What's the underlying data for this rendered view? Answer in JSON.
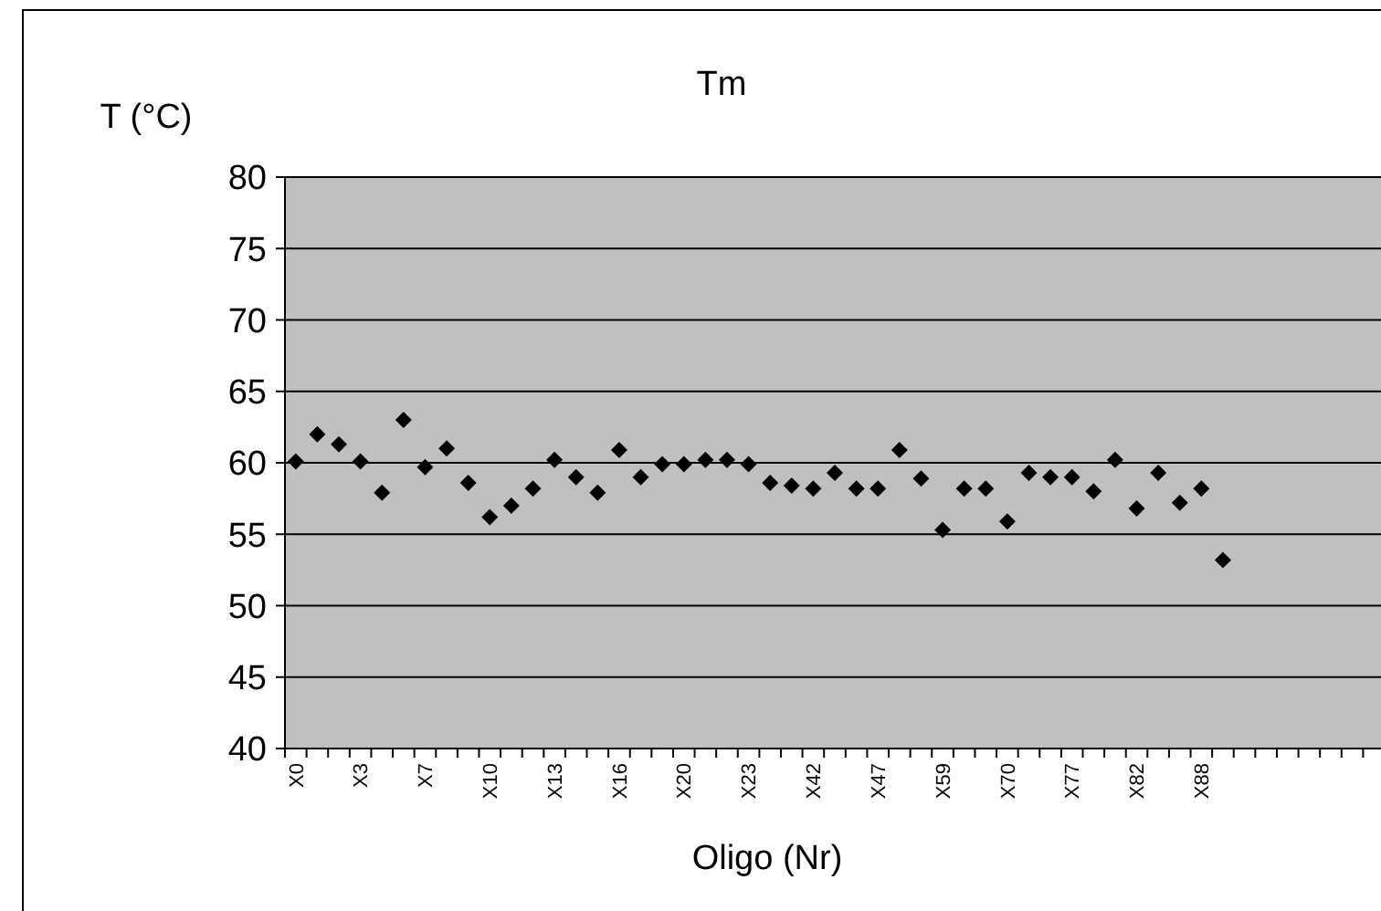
{
  "chart_data": {
    "type": "scatter",
    "title": "Tm",
    "xlabel": "Oligo (Nr)",
    "ylabel": "T (°C)",
    "categories": [
      "X0",
      null,
      null,
      "X3",
      null,
      null,
      "X7",
      null,
      null,
      "X10",
      null,
      null,
      "X13",
      null,
      null,
      "X16",
      null,
      null,
      "X20",
      null,
      null,
      "X23",
      null,
      null,
      "X42",
      null,
      null,
      "X47",
      null,
      null,
      "X59",
      null,
      null,
      "X70",
      null,
      null,
      "X77",
      null,
      null,
      "X82",
      null,
      null,
      "X88",
      null,
      null,
      null,
      null,
      null,
      null,
      null,
      null
    ],
    "series": [
      {
        "color": "#000000",
        "values": [
          60.1,
          62.0,
          61.3,
          60.1,
          57.9,
          63.0,
          59.7,
          61.0,
          58.6,
          56.2,
          57.0,
          58.2,
          60.2,
          59.0,
          57.9,
          60.9,
          59.0,
          59.9,
          59.9,
          60.2,
          60.2,
          59.9,
          58.6,
          58.4,
          58.2,
          59.3,
          58.2,
          58.2,
          60.9,
          58.9,
          55.3,
          58.2,
          58.2,
          55.9,
          59.3,
          59.0,
          59.0,
          58.0,
          60.2,
          56.8,
          59.3,
          57.2,
          58.2,
          53.2,
          null,
          null,
          null,
          null,
          null,
          null,
          null
        ]
      }
    ],
    "ylim": [
      40,
      80
    ],
    "yticks": [
      40,
      45,
      50,
      55,
      60,
      65,
      70,
      75,
      80
    ],
    "grid": "y",
    "marker": "diamond"
  }
}
